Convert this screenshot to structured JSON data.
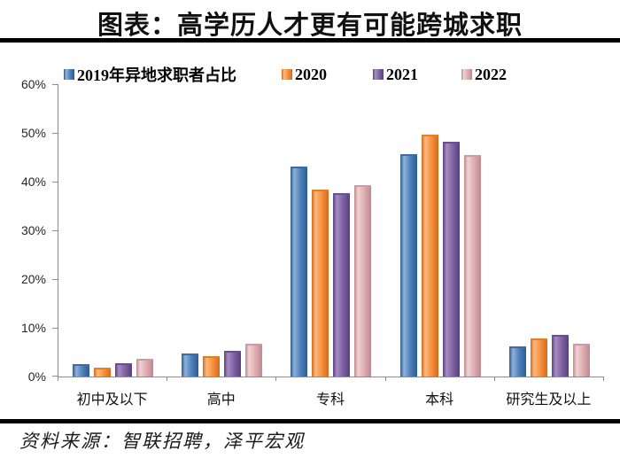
{
  "header": {
    "title": "图表：高学历人才更有可能跨城求职"
  },
  "footer": {
    "source": "资料来源：智联招聘，泽平宏观"
  },
  "colors": {
    "axis": "#8c8c8c",
    "divider": "#000000",
    "series_blue": "#4F81BD",
    "series_orange": "#F79240",
    "series_purple": "#7F63A4",
    "series_pink": "#DFAEB3"
  },
  "chart_data": {
    "type": "bar",
    "title": "图表：高学历人才更有可能跨城求职",
    "categories": [
      "初中及以下",
      "高中",
      "专科",
      "本科",
      "研究生及以上"
    ],
    "series": [
      {
        "name": "2019年异地求职者占比",
        "values": [
          2.2,
          4.4,
          42.8,
          45.2,
          5.8
        ],
        "color": "#4F81BD",
        "color_light": "#8FB2D8",
        "color_dark": "#2F5A8E",
        "color_cap": "#3E6BA5"
      },
      {
        "name": "2020",
        "values": [
          1.5,
          3.9,
          38.0,
          49.3,
          7.5
        ],
        "color": "#F79240",
        "color_light": "#FBB87E",
        "color_dark": "#D26A1A",
        "color_cap": "#E87E22"
      },
      {
        "name": "2021",
        "values": [
          2.4,
          4.9,
          37.2,
          47.9,
          8.1
        ],
        "color": "#7F63A4",
        "color_light": "#A78CC4",
        "color_dark": "#57407A",
        "color_cap": "#6A4F8F"
      },
      {
        "name": "2022",
        "values": [
          3.2,
          6.4,
          38.9,
          45.1,
          6.4
        ],
        "color": "#DFAEB3",
        "color_light": "#F0D2D4",
        "color_dark": "#BC8990",
        "color_cap": "#D09AA0"
      }
    ],
    "xlabel": "",
    "ylabel": "",
    "ylim": [
      0,
      60
    ],
    "ytick_step": 10,
    "ytick_suffix": "%",
    "legend_position": "top",
    "grid": false
  }
}
